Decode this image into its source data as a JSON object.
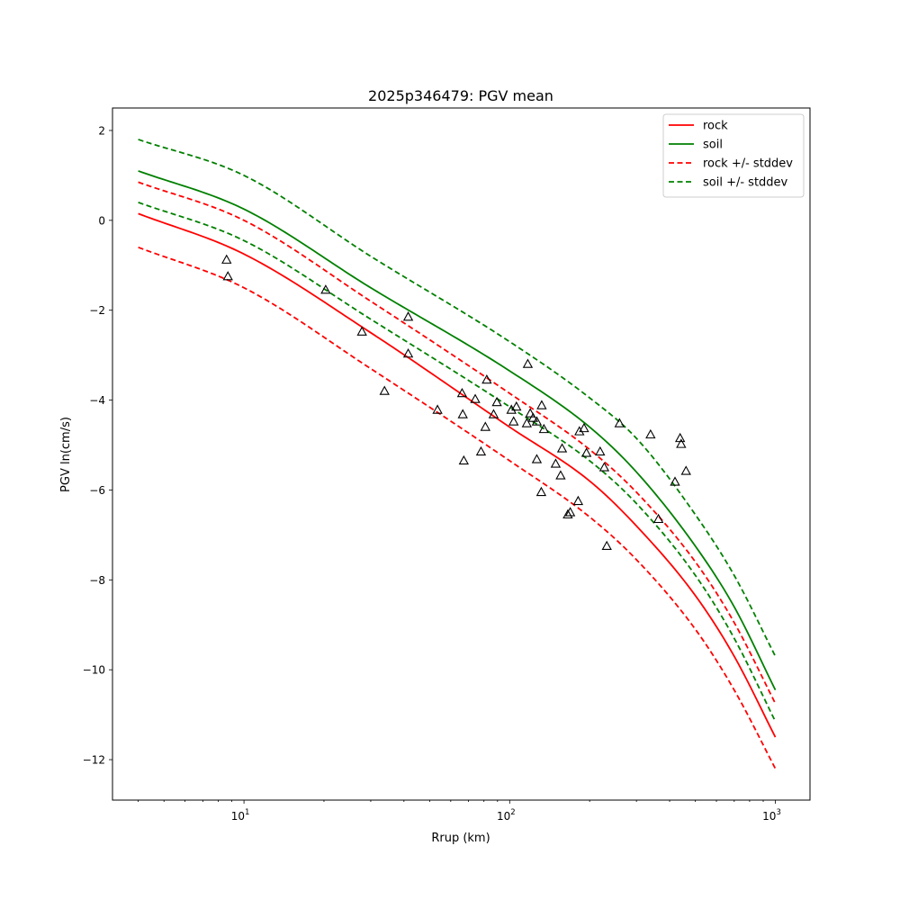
{
  "chart_data": {
    "type": "line",
    "title": "2025p346479: PGV mean",
    "xlabel": "Rrup (km)",
    "ylabel": "PGV ln(cm/s)",
    "xscale": "log",
    "xlim": [
      3.2,
      1350
    ],
    "ylim": [
      -12.9,
      2.5
    ],
    "x_ticks": [
      {
        "value": 10,
        "base": "10",
        "exp": "1"
      },
      {
        "value": 100,
        "base": "10",
        "exp": "2"
      },
      {
        "value": 1000,
        "base": "10",
        "exp": "3"
      }
    ],
    "y_ticks": [
      2,
      0,
      -2,
      -4,
      -6,
      -8,
      -10,
      -12
    ],
    "y_tick_labels": [
      "2",
      "0",
      "−2",
      "−4",
      "−6",
      "−8",
      "−10",
      "−12"
    ],
    "legend_position": "top-right",
    "series": [
      {
        "name": "rock",
        "color": "#ff0000",
        "dashed": false,
        "x": [
          4,
          10,
          30,
          100,
          200,
          300,
          500,
          700,
          1000
        ],
        "y": [
          0.15,
          -0.75,
          -2.5,
          -4.6,
          -5.8,
          -6.8,
          -8.35,
          -9.7,
          -11.5
        ]
      },
      {
        "name": "soil",
        "color": "#008000",
        "dashed": false,
        "x": [
          4,
          10,
          30,
          100,
          200,
          300,
          500,
          700,
          1000
        ],
        "y": [
          1.1,
          0.25,
          -1.5,
          -3.35,
          -4.6,
          -5.6,
          -7.25,
          -8.6,
          -10.45
        ]
      },
      {
        "name": "rock +/- stddev",
        "color": "#ff0000",
        "dashed": true,
        "x": [
          4,
          10,
          30,
          100,
          200,
          300,
          500,
          700,
          1000
        ],
        "y": [
          0.85,
          0.0,
          -1.8,
          -3.85,
          -5.1,
          -6.05,
          -7.6,
          -8.95,
          -10.75
        ]
      },
      {
        "name": "rock +/- stddev",
        "color": "#ff0000",
        "dashed": true,
        "legend": false,
        "x": [
          4,
          10,
          30,
          100,
          200,
          300,
          500,
          700,
          1000
        ],
        "y": [
          -0.6,
          -1.5,
          -3.3,
          -5.35,
          -6.6,
          -7.55,
          -9.1,
          -10.45,
          -12.2
        ]
      },
      {
        "name": "soil +/- stddev",
        "color": "#008000",
        "dashed": true,
        "x": [
          4,
          10,
          30,
          100,
          200,
          300,
          500,
          700,
          1000
        ],
        "y": [
          1.8,
          1.0,
          -0.8,
          -2.7,
          -3.95,
          -4.85,
          -6.55,
          -7.9,
          -9.7
        ]
      },
      {
        "name": "soil +/- stddev",
        "color": "#008000",
        "dashed": true,
        "legend": false,
        "x": [
          4,
          10,
          30,
          100,
          200,
          300,
          500,
          700,
          1000
        ],
        "y": [
          0.4,
          -0.45,
          -2.2,
          -4.15,
          -5.35,
          -6.3,
          -7.9,
          -9.3,
          -11.15
        ]
      }
    ],
    "observations": {
      "marker": "triangle",
      "points": [
        {
          "x": 8.6,
          "y": -0.88
        },
        {
          "x": 8.7,
          "y": -1.25
        },
        {
          "x": 20.3,
          "y": -1.55
        },
        {
          "x": 27.8,
          "y": -2.48
        },
        {
          "x": 33.8,
          "y": -3.8
        },
        {
          "x": 41.5,
          "y": -2.15
        },
        {
          "x": 41.5,
          "y": -2.97
        },
        {
          "x": 53.5,
          "y": -4.22
        },
        {
          "x": 66.2,
          "y": -3.85
        },
        {
          "x": 66.6,
          "y": -4.32
        },
        {
          "x": 67.2,
          "y": -5.35
        },
        {
          "x": 74.2,
          "y": -3.98
        },
        {
          "x": 78.0,
          "y": -5.15
        },
        {
          "x": 81.0,
          "y": -4.6
        },
        {
          "x": 82.0,
          "y": -3.55
        },
        {
          "x": 87.0,
          "y": -4.32
        },
        {
          "x": 89.5,
          "y": -4.05
        },
        {
          "x": 101.5,
          "y": -4.22
        },
        {
          "x": 103.5,
          "y": -4.48
        },
        {
          "x": 106.0,
          "y": -4.15
        },
        {
          "x": 116.0,
          "y": -4.52
        },
        {
          "x": 117.0,
          "y": -3.2
        },
        {
          "x": 119.5,
          "y": -4.3
        },
        {
          "x": 122.5,
          "y": -4.4
        },
        {
          "x": 126.5,
          "y": -4.48
        },
        {
          "x": 126.5,
          "y": -5.32
        },
        {
          "x": 131.5,
          "y": -6.05
        },
        {
          "x": 132.0,
          "y": -4.12
        },
        {
          "x": 134.5,
          "y": -4.65
        },
        {
          "x": 149.0,
          "y": -5.42
        },
        {
          "x": 155.5,
          "y": -5.68
        },
        {
          "x": 157.5,
          "y": -5.08
        },
        {
          "x": 165.5,
          "y": -6.55
        },
        {
          "x": 169.0,
          "y": -6.5
        },
        {
          "x": 181.0,
          "y": -6.25
        },
        {
          "x": 183.0,
          "y": -4.7
        },
        {
          "x": 190.5,
          "y": -4.63
        },
        {
          "x": 194.5,
          "y": -5.18
        },
        {
          "x": 219.0,
          "y": -5.15
        },
        {
          "x": 227.0,
          "y": -5.5
        },
        {
          "x": 232.0,
          "y": -7.25
        },
        {
          "x": 259.0,
          "y": -4.52
        },
        {
          "x": 339.0,
          "y": -4.77
        },
        {
          "x": 363.0,
          "y": -6.65
        },
        {
          "x": 419.0,
          "y": -5.82
        },
        {
          "x": 438.0,
          "y": -4.85
        },
        {
          "x": 442.0,
          "y": -4.98
        },
        {
          "x": 461.0,
          "y": -5.58
        }
      ]
    }
  }
}
